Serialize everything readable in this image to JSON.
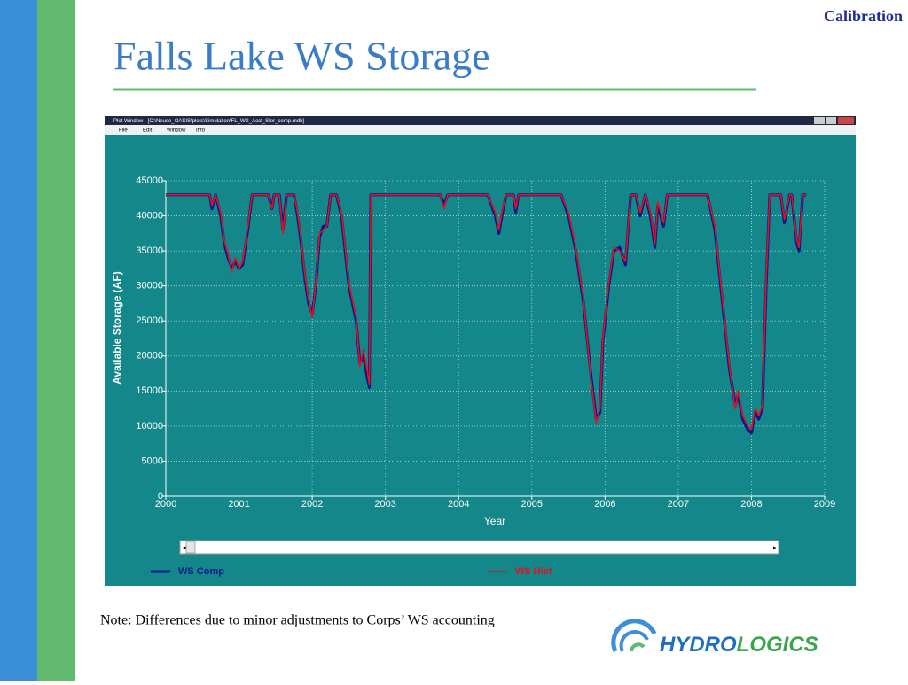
{
  "slide": {
    "section": "Calibration",
    "title": "Falls Lake WS Storage",
    "note": "Note:  Differences due to minor adjustments to Corps’ WS accounting",
    "logo": {
      "part1": "HYDRO",
      "part2": "LOGICS"
    }
  },
  "window": {
    "title": "Plot Window - [C:\\Neuse_OASIS\\plots\\Simulation\\FL_WS_Acct_Stor_comp.mdb]",
    "menu": [
      "File",
      "Edit",
      "Window",
      "Info"
    ]
  },
  "chart_data": {
    "type": "line",
    "xlabel": "Year",
    "ylabel": "Available Storage (AF)",
    "xlim": [
      2000,
      2009
    ],
    "xticks": [
      2000,
      2001,
      2002,
      2003,
      2004,
      2005,
      2006,
      2007,
      2008,
      2009
    ],
    "ylim": [
      0,
      45000
    ],
    "yticks": [
      0,
      5000,
      10000,
      15000,
      20000,
      25000,
      30000,
      35000,
      40000,
      45000
    ],
    "grid": true,
    "x": [
      2000.0,
      2000.6,
      2000.63,
      2000.68,
      2000.75,
      2000.8,
      2000.85,
      2000.9,
      2000.95,
      2001.0,
      2001.05,
      2001.12,
      2001.18,
      2001.4,
      2001.45,
      2001.48,
      2001.55,
      2001.6,
      2001.65,
      2001.75,
      2001.8,
      2001.85,
      2001.9,
      2001.95,
      2002.0,
      2002.05,
      2002.1,
      2002.15,
      2002.2,
      2002.25,
      2002.33,
      2002.4,
      2002.5,
      2002.6,
      2002.65,
      2002.7,
      2002.75,
      2002.78,
      2002.8,
      2003.75,
      2003.8,
      2003.85,
      2004.4,
      2004.5,
      2004.55,
      2004.6,
      2004.65,
      2004.75,
      2004.78,
      2004.82,
      2005.4,
      2005.5,
      2005.6,
      2005.7,
      2005.8,
      2005.88,
      2005.93,
      2005.97,
      2006.05,
      2006.12,
      2006.2,
      2006.28,
      2006.35,
      2006.42,
      2006.48,
      2006.55,
      2006.62,
      2006.68,
      2006.72,
      2006.8,
      2006.85,
      2007.4,
      2007.5,
      2007.6,
      2007.7,
      2007.78,
      2007.82,
      2007.88,
      2007.95,
      2008.0,
      2008.05,
      2008.1,
      2008.15,
      2008.2,
      2008.25,
      2008.4,
      2008.45,
      2008.52,
      2008.55,
      2008.62,
      2008.65,
      2008.7,
      2008.75
    ],
    "series": [
      {
        "name": "WS Comp",
        "color": "#0a1a8c",
        "values": [
          43000,
          43000,
          41000,
          43000,
          40000,
          36000,
          34000,
          32500,
          33500,
          32500,
          33000,
          38000,
          43000,
          43000,
          41000,
          43000,
          43000,
          38000,
          43000,
          43000,
          40000,
          36000,
          31000,
          27500,
          26000,
          30000,
          37000,
          38500,
          38500,
          43000,
          43000,
          40000,
          30000,
          25000,
          19000,
          20000,
          17000,
          15500,
          43000,
          43000,
          41500,
          43000,
          43000,
          40000,
          37500,
          40500,
          43000,
          43000,
          40500,
          43000,
          43000,
          40000,
          35000,
          28000,
          18000,
          11000,
          12000,
          22000,
          30000,
          35000,
          35500,
          33000,
          43000,
          43000,
          40000,
          43000,
          40000,
          35500,
          41500,
          38500,
          43000,
          43000,
          38000,
          28000,
          18000,
          13000,
          14500,
          11000,
          9500,
          9000,
          12000,
          11000,
          12500,
          30000,
          43000,
          43000,
          39000,
          43000,
          43000,
          36000,
          35000,
          43000,
          43000
        ]
      },
      {
        "name": "WS Hist",
        "color": "#e8101a",
        "values": [
          43000,
          43000,
          41500,
          43000,
          40500,
          36500,
          34500,
          32000,
          34000,
          32500,
          33500,
          38500,
          43000,
          43000,
          41000,
          43000,
          43000,
          37500,
          43000,
          43000,
          40500,
          36500,
          31500,
          28000,
          25500,
          30500,
          37500,
          38000,
          38500,
          43000,
          43000,
          40500,
          30500,
          25500,
          18500,
          21000,
          18000,
          16000,
          43000,
          43000,
          41000,
          43000,
          43000,
          40500,
          38000,
          41000,
          43000,
          43000,
          41000,
          43000,
          43000,
          40500,
          35500,
          28500,
          17500,
          10500,
          12500,
          22500,
          30500,
          35500,
          35000,
          33500,
          43000,
          43000,
          40500,
          43000,
          40500,
          36000,
          42000,
          39000,
          43000,
          43000,
          38500,
          28500,
          18500,
          12500,
          15000,
          11500,
          10000,
          9500,
          12500,
          11500,
          13000,
          31000,
          43000,
          43000,
          39500,
          43000,
          43000,
          36500,
          35500,
          43000,
          43000
        ]
      }
    ]
  }
}
